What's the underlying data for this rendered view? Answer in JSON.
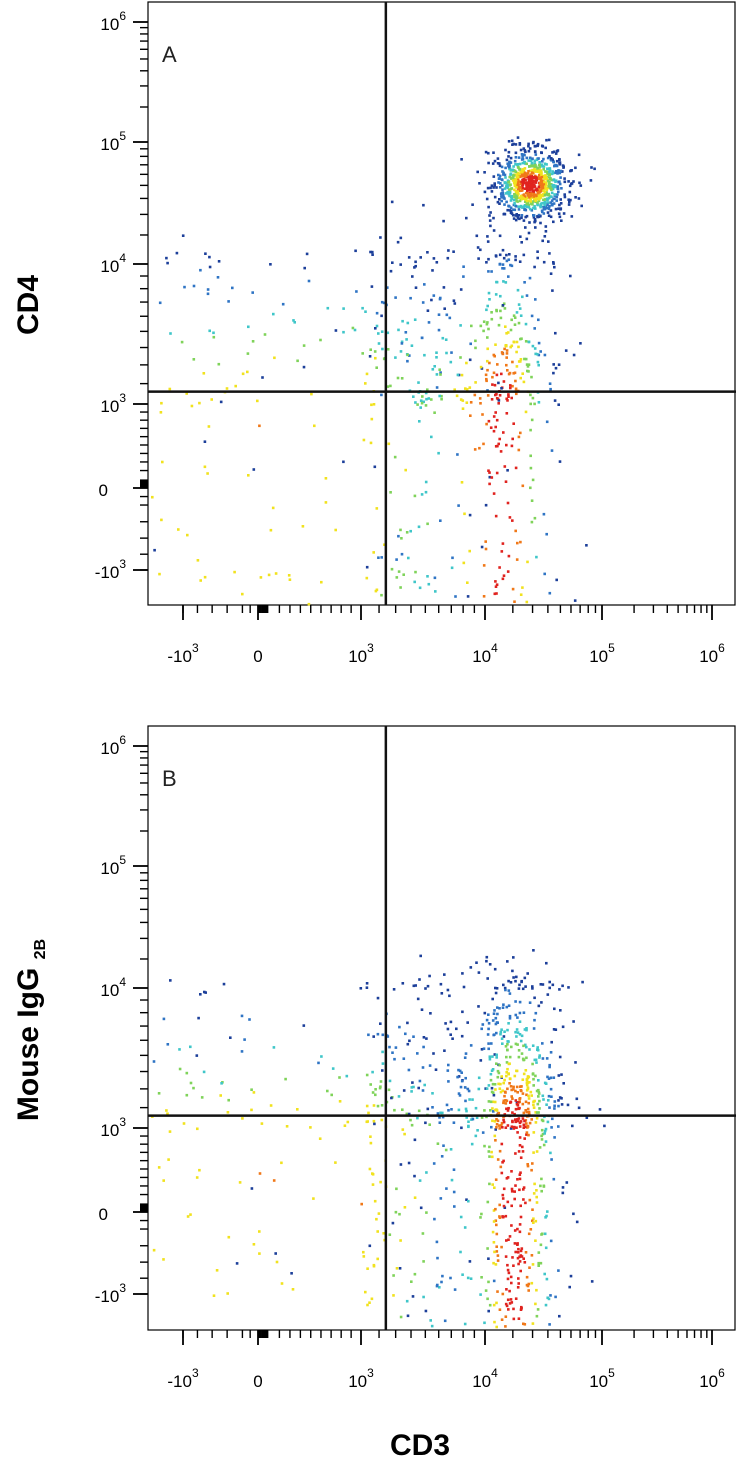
{
  "chart_data": [
    {
      "type": "scatter",
      "panel_label": "A",
      "xlabel": "CD3",
      "ylabel": "CD4",
      "x_scale": "biexponential",
      "y_scale": "biexponential",
      "x_ticks": [
        {
          "base": "-10",
          "exp": "3",
          "value": -1000
        },
        {
          "base": "0",
          "exp": "",
          "value": 0
        },
        {
          "base": "10",
          "exp": "3",
          "value": 1000
        },
        {
          "base": "10",
          "exp": "4",
          "value": 10000
        },
        {
          "base": "10",
          "exp": "5",
          "value": 100000
        },
        {
          "base": "10",
          "exp": "6",
          "value": 1000000
        }
      ],
      "y_ticks": [
        {
          "base": "-10",
          "exp": "3",
          "value": -1000
        },
        {
          "base": "0",
          "exp": "",
          "value": 0
        },
        {
          "base": "10",
          "exp": "3",
          "value": 1000
        },
        {
          "base": "10",
          "exp": "4",
          "value": 10000
        },
        {
          "base": "10",
          "exp": "5",
          "value": 100000
        },
        {
          "base": "10",
          "exp": "6",
          "value": 1000000
        }
      ],
      "quadrant_gate": {
        "x": 2400,
        "y": 1600
      },
      "density_colormap": [
        "#1c3f9a",
        "#2f74c4",
        "#3fc6c9",
        "#7fd35a",
        "#f1e21e",
        "#f07818",
        "#e0231f"
      ],
      "populations": [
        {
          "x": 50,
          "y": 320,
          "count": 360,
          "spread_x": 0.28,
          "spread_y": 0.32
        },
        {
          "x": 15000,
          "y": 300,
          "count": 620,
          "spread_x": 0.34,
          "spread_y": 0.34
        },
        {
          "x": 28000,
          "y": 52000,
          "count": 820,
          "spread_x": 0.22,
          "spread_y": 0.2
        },
        {
          "x": 600,
          "y": 900,
          "count": 160,
          "spread_x": 0.35,
          "spread_y": 0.3
        }
      ]
    },
    {
      "type": "scatter",
      "panel_label": "B",
      "xlabel": "CD3",
      "ylabel": "Mouse IgG",
      "ylabel_subscript": "2B",
      "x_scale": "biexponential",
      "y_scale": "biexponential",
      "x_ticks": [
        {
          "base": "-10",
          "exp": "3",
          "value": -1000
        },
        {
          "base": "0",
          "exp": "",
          "value": 0
        },
        {
          "base": "10",
          "exp": "3",
          "value": 1000
        },
        {
          "base": "10",
          "exp": "4",
          "value": 10000
        },
        {
          "base": "10",
          "exp": "5",
          "value": 100000
        },
        {
          "base": "10",
          "exp": "6",
          "value": 1000000
        }
      ],
      "y_ticks": [
        {
          "base": "-10",
          "exp": "3",
          "value": -1000
        },
        {
          "base": "0",
          "exp": "",
          "value": 0
        },
        {
          "base": "10",
          "exp": "3",
          "value": 1000
        },
        {
          "base": "10",
          "exp": "4",
          "value": 10000
        },
        {
          "base": "10",
          "exp": "5",
          "value": 100000
        },
        {
          "base": "10",
          "exp": "6",
          "value": 1000000
        }
      ],
      "quadrant_gate": {
        "x": 2400,
        "y": 1600
      },
      "density_colormap": [
        "#1c3f9a",
        "#2f74c4",
        "#3fc6c9",
        "#7fd35a",
        "#f1e21e",
        "#f07818",
        "#e0231f"
      ],
      "populations": [
        {
          "x": 60,
          "y": 360,
          "count": 380,
          "spread_x": 0.28,
          "spread_y": 0.3
        },
        {
          "x": 700,
          "y": 380,
          "count": 220,
          "spread_x": 0.38,
          "spread_y": 0.22
        },
        {
          "x": 20000,
          "y": 330,
          "count": 1100,
          "spread_x": 0.3,
          "spread_y": 0.3
        }
      ]
    }
  ]
}
